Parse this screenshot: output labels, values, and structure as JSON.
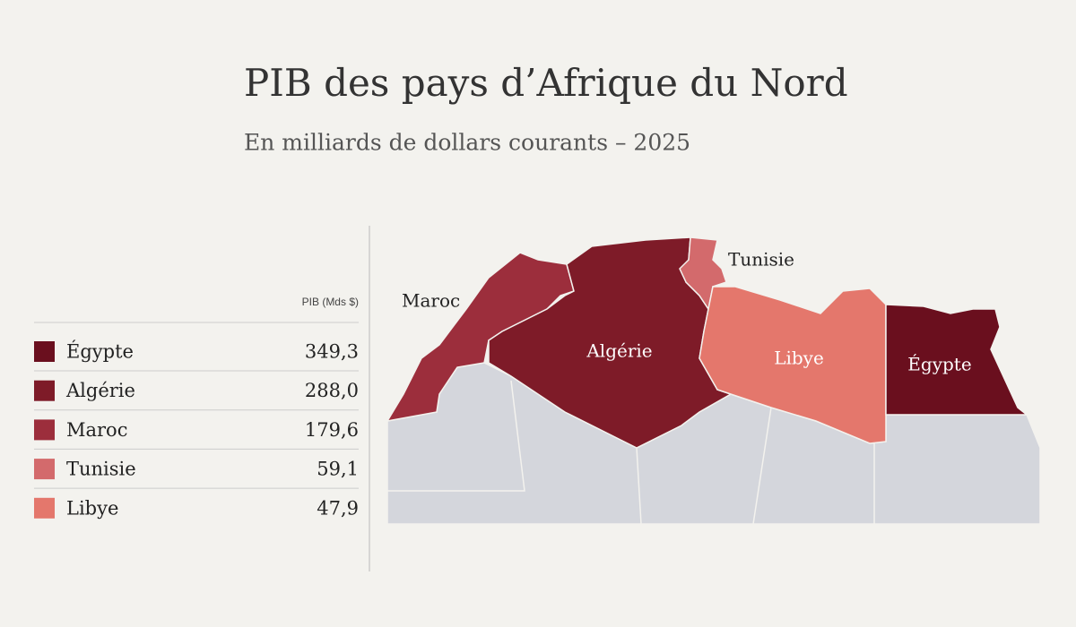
{
  "header": {
    "title": "PIB des pays d’Afrique du Nord",
    "subtitle": "En milliards de dollars courants – 2025"
  },
  "table": {
    "column_header": "PIB (Mds $)",
    "rows": [
      {
        "name": "Égypte",
        "value": "349,3",
        "color": "#6a0f1e"
      },
      {
        "name": "Algérie",
        "value": "288,0",
        "color": "#7e1b28"
      },
      {
        "name": "Maroc",
        "value": "179,6",
        "color": "#9c2e3c"
      },
      {
        "name": "Tunisie",
        "value": "59,1",
        "color": "#d36a6c"
      },
      {
        "name": "Libye",
        "value": "47,9",
        "color": "#e4776c"
      }
    ]
  }
}
